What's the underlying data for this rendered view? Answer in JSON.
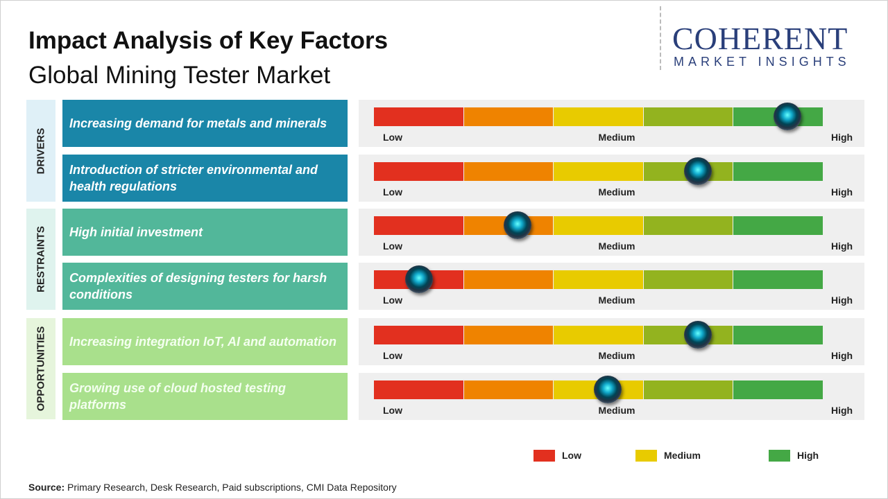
{
  "header": {
    "title": "Impact Analysis of Key Factors",
    "subtitle": "Global Mining Tester Market"
  },
  "logo": {
    "name": "COHERENT",
    "tagline": "MARKET INSIGHTS"
  },
  "impact_range": [
    0,
    5
  ],
  "segment_colors": [
    "#e2301f",
    "#ef8300",
    "#e8cb00",
    "#93b31f",
    "#44a845"
  ],
  "scale_labels": [
    "Low",
    "Medium",
    "High"
  ],
  "groups": [
    {
      "label": "DRIVERS",
      "label_bg": "#dff0f7",
      "box_color": "#1a86a8",
      "text_color": "#ffffff",
      "factors": [
        {
          "text": "Increasing demand for metals and minerals",
          "impact": 4.6
        },
        {
          "text": "Introduction of stricter environmental and health regulations",
          "impact": 3.6
        }
      ]
    },
    {
      "label": "RESTRAINTS",
      "label_bg": "#dff3ee",
      "box_color": "#52b79a",
      "text_color": "#ffffff",
      "factors": [
        {
          "text": "High initial investment",
          "impact": 1.6
        },
        {
          "text": "Complexities of designing testers for harsh conditions",
          "impact": 0.5
        }
      ]
    },
    {
      "label": "OPPORTUNITIES",
      "label_bg": "#e6f5dc",
      "box_color": "#a9e08c",
      "text_color": "#f4fff0",
      "factors": [
        {
          "text": "Increasing integration IoT, AI and automation",
          "impact": 3.6
        },
        {
          "text": "Growing use of cloud hosted testing platforms",
          "impact": 2.6
        }
      ]
    }
  ],
  "legend": [
    {
      "label": "Low",
      "color": "#e2301f"
    },
    {
      "label": "Medium",
      "color": "#e8cb00"
    },
    {
      "label": "High",
      "color": "#44a845"
    }
  ],
  "source": {
    "label": "Source:",
    "text": "Primary Research, Desk Research, Paid subscriptions, CMI Data Repository"
  }
}
